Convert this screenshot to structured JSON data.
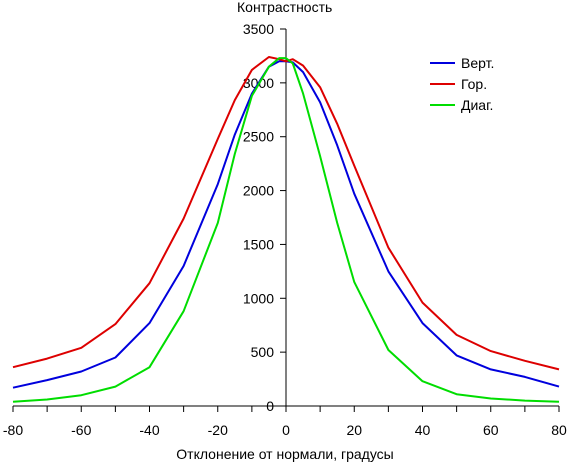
{
  "chart_data": {
    "type": "line",
    "title": "",
    "ylabel": "Контрастность",
    "xlabel": "Отклонение от нормали, градусы",
    "xlim": [
      -80,
      80
    ],
    "ylim": [
      0,
      3500
    ],
    "x_ticks": [
      -80,
      -60,
      -40,
      -20,
      0,
      20,
      40,
      60,
      80
    ],
    "y_ticks": [
      0,
      500,
      1000,
      1500,
      2000,
      2500,
      3000,
      3500
    ],
    "grid": false,
    "legend_position": "top-right",
    "series": [
      {
        "name": "Верт.",
        "color": "#0000dd",
        "x": [
          -80,
          -70,
          -60,
          -50,
          -40,
          -30,
          -20,
          -15,
          -10,
          -5,
          -2,
          0,
          2,
          5,
          10,
          15,
          20,
          30,
          40,
          50,
          60,
          70,
          80
        ],
        "y": [
          170,
          240,
          320,
          450,
          770,
          1300,
          2060,
          2520,
          2900,
          3150,
          3200,
          3200,
          3190,
          3100,
          2820,
          2420,
          1970,
          1250,
          770,
          470,
          340,
          270,
          180
        ]
      },
      {
        "name": "Гор.",
        "color": "#dd0000",
        "x": [
          -80,
          -70,
          -60,
          -50,
          -40,
          -30,
          -20,
          -15,
          -10,
          -5,
          -2,
          0,
          2,
          5,
          10,
          15,
          20,
          30,
          40,
          50,
          60,
          70,
          80
        ],
        "y": [
          360,
          440,
          540,
          760,
          1140,
          1740,
          2480,
          2840,
          3120,
          3240,
          3220,
          3200,
          3220,
          3160,
          2960,
          2620,
          2230,
          1470,
          960,
          660,
          510,
          420,
          340
        ]
      },
      {
        "name": "Диаг.",
        "color": "#00dd00",
        "x": [
          -80,
          -70,
          -60,
          -50,
          -40,
          -30,
          -20,
          -15,
          -10,
          -5,
          -2,
          0,
          2,
          5,
          10,
          15,
          20,
          30,
          40,
          50,
          60,
          70,
          80
        ],
        "y": [
          40,
          60,
          100,
          180,
          360,
          880,
          1700,
          2340,
          2880,
          3150,
          3230,
          3230,
          3180,
          2900,
          2320,
          1700,
          1150,
          520,
          230,
          110,
          70,
          50,
          40
        ]
      }
    ]
  }
}
